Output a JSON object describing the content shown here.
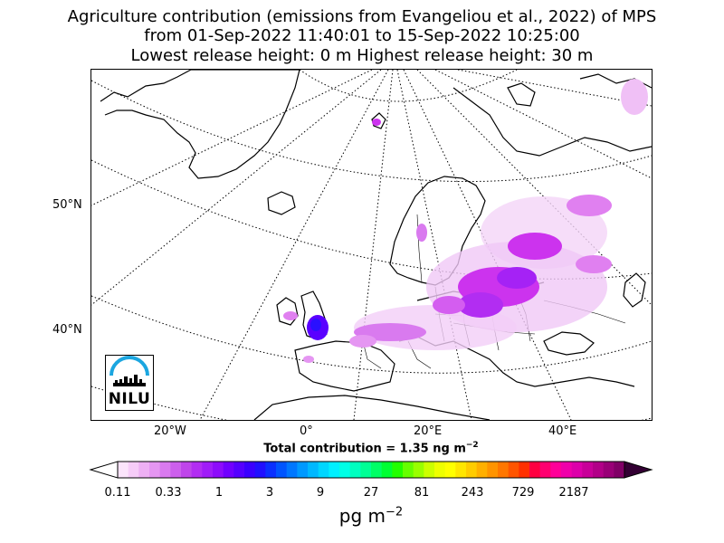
{
  "title": {
    "line1": "Agriculture contribution (emissions from Evangeliou et al., 2022) of MPS",
    "line2": "from 01-Sep-2022 11:40:01 to 15-Sep-2022 10:25:00",
    "line3": "Lowest release height: 0 m      Highest release height: 30 m"
  },
  "map": {
    "lat_labels": [
      "50°N",
      "40°N"
    ],
    "lon_labels": [
      "20°W",
      "0°",
      "20°E",
      "40°E"
    ],
    "coastline_color": "#000000",
    "graticule_style": "dotted",
    "plume_colors": [
      "#f2c8f8",
      "#e080f0",
      "#cc33ee",
      "#9900ff",
      "#5a00ff",
      "#2a10ff"
    ]
  },
  "total_contribution": {
    "label": "Total contribution = 1.35 ng m",
    "exponent": "−2"
  },
  "colorbar": {
    "tick_labels": [
      "0.11",
      "0.33",
      "1",
      "3",
      "9",
      "27",
      "81",
      "243",
      "729",
      "2187"
    ],
    "unit": "pg m",
    "unit_exponent": "−2",
    "colors": [
      "#fbe4fb",
      "#f6ccf8",
      "#eeb0f4",
      "#e596f2",
      "#d97aef",
      "#cc5fec",
      "#bf45ea",
      "#b22df2",
      "#a01cf8",
      "#8d0cfb",
      "#7100ff",
      "#5500ff",
      "#3a00ff",
      "#2010ff",
      "#0a30ff",
      "#0055ff",
      "#0077ff",
      "#0099ff",
      "#00b8ff",
      "#00d6ff",
      "#00f0ff",
      "#00ffe6",
      "#00ffc0",
      "#00ff95",
      "#00ff66",
      "#00ff33",
      "#22ff00",
      "#66ff00",
      "#99ff00",
      "#ccff00",
      "#eeff00",
      "#ffff00",
      "#ffe600",
      "#ffcc00",
      "#ffb000",
      "#ff9400",
      "#ff7700",
      "#ff5500",
      "#ff3000",
      "#ff0040",
      "#ff0070",
      "#ff0099",
      "#f000aa",
      "#dd00aa",
      "#c80099",
      "#b20088",
      "#990077",
      "#800066"
    ]
  },
  "logo": {
    "text": "NILU",
    "arc_color": "#1ba6e0"
  }
}
